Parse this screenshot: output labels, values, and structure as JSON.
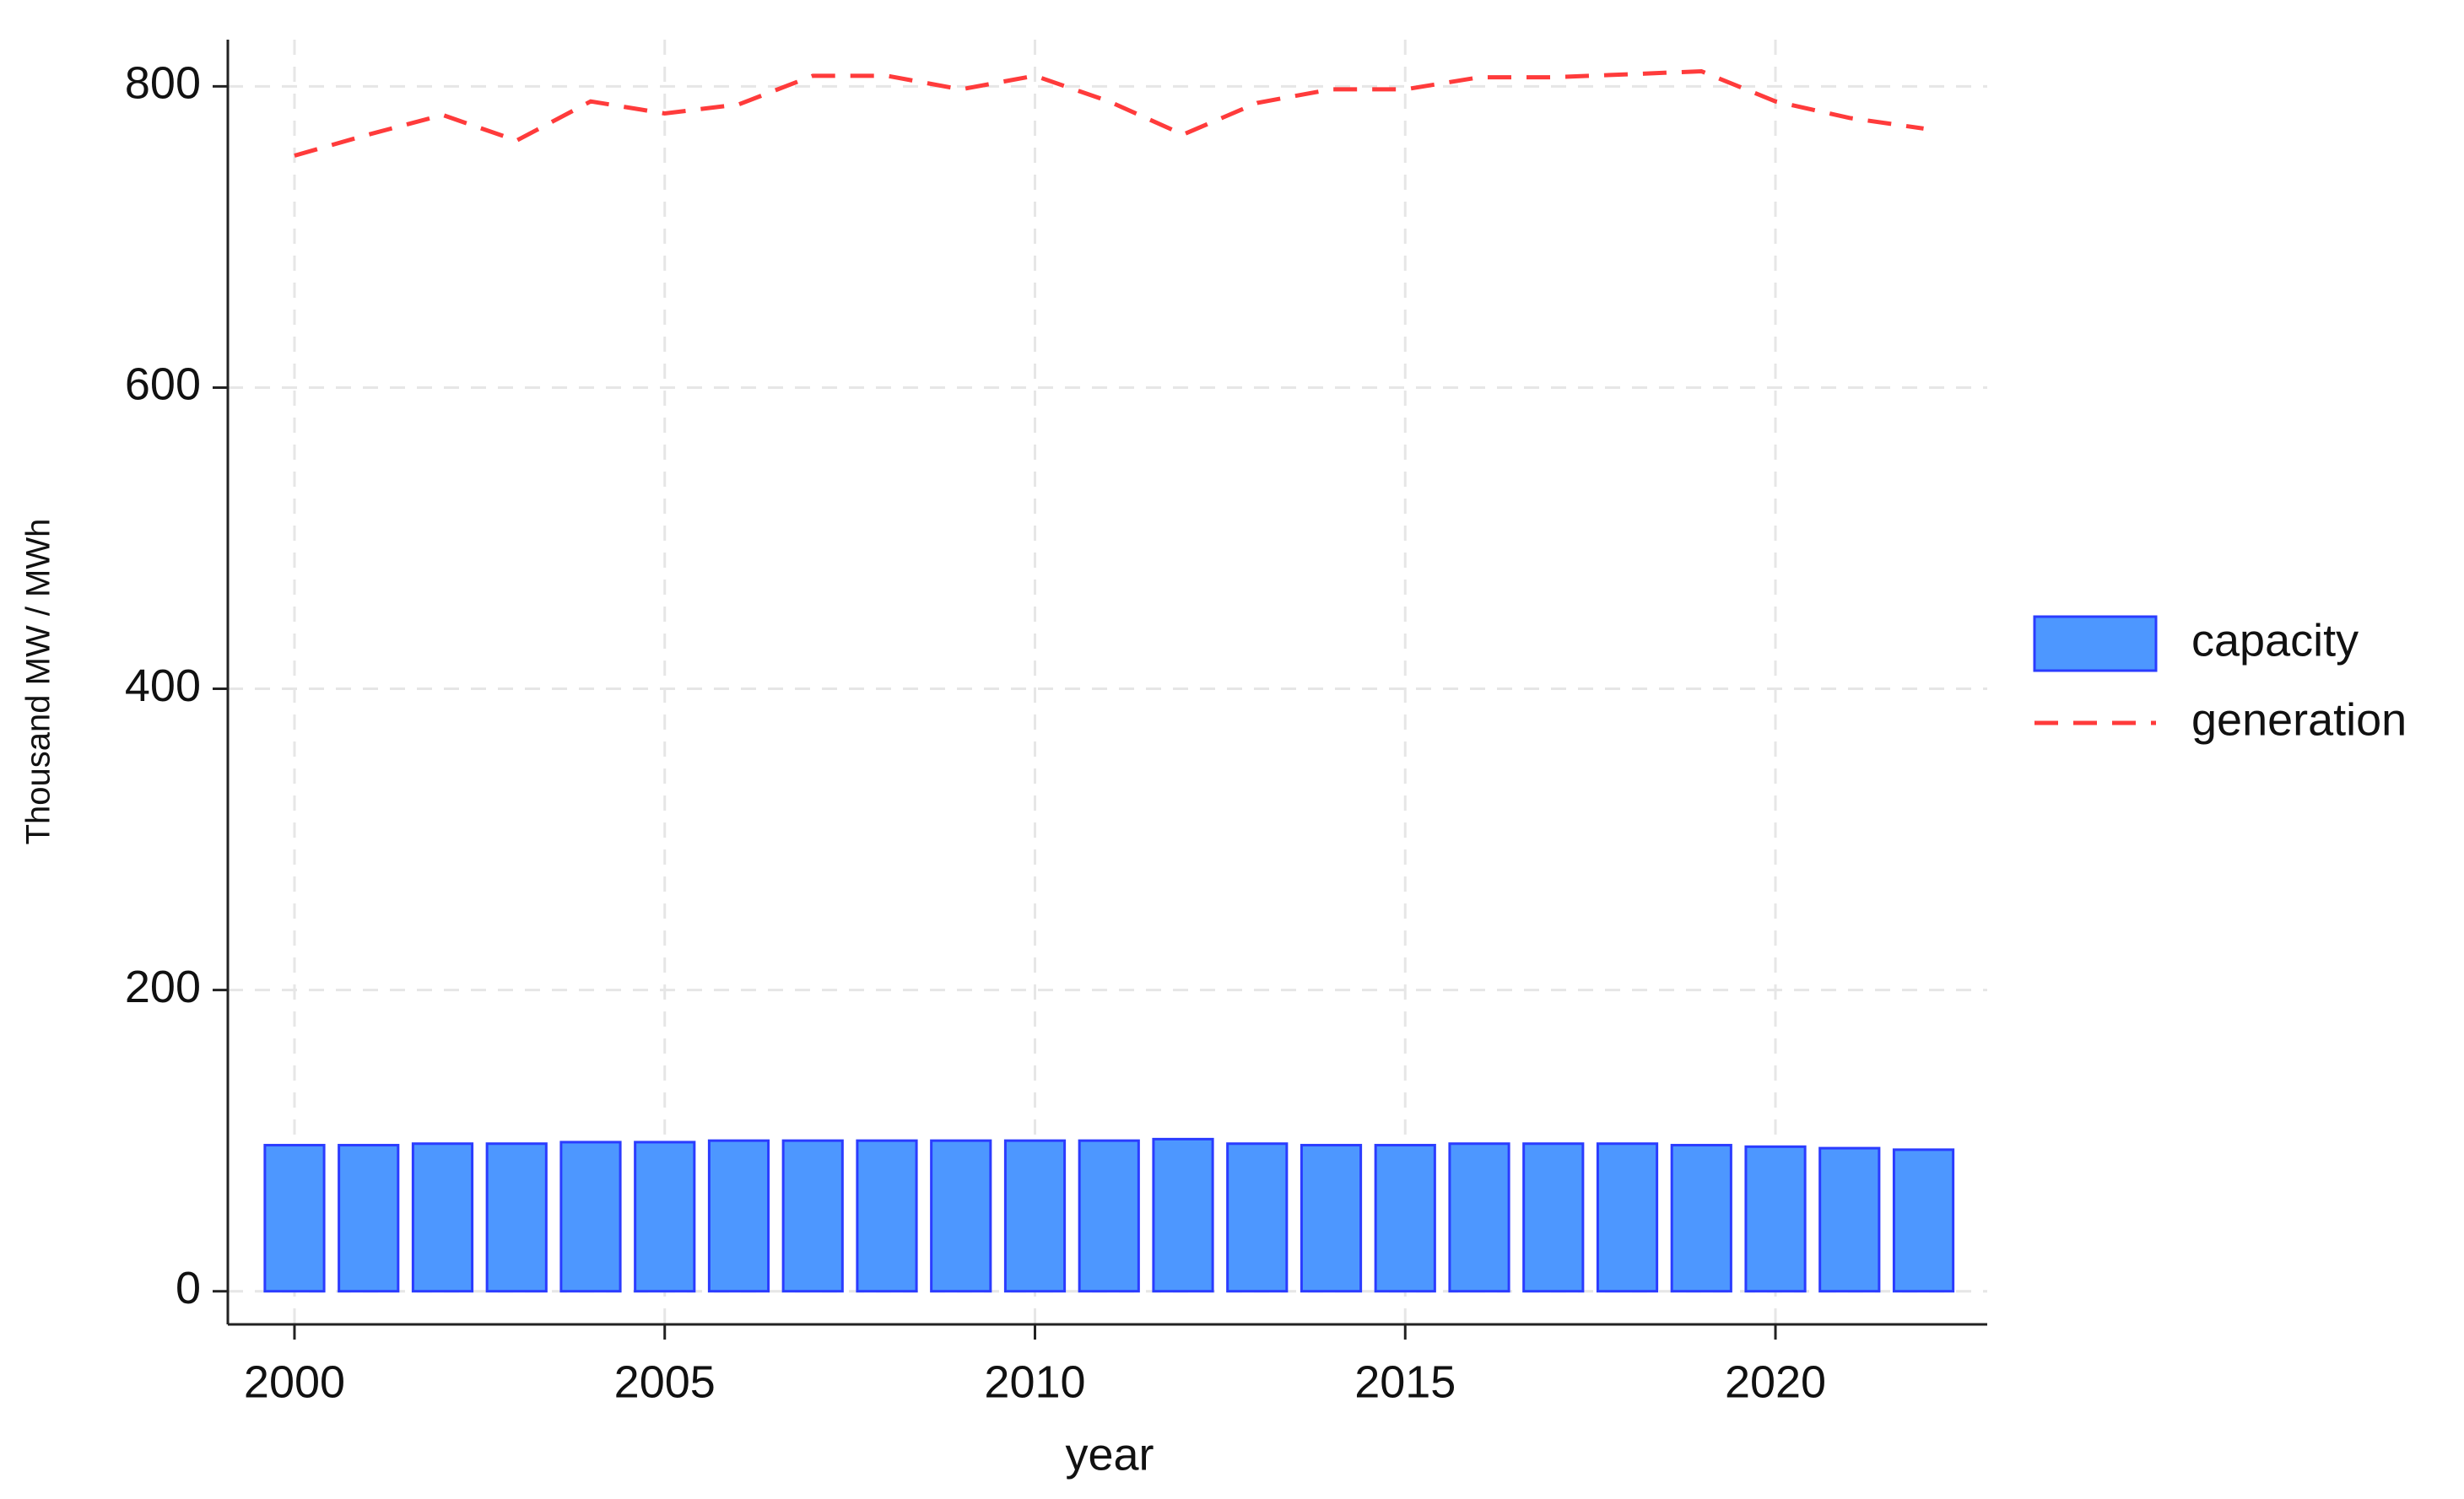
{
  "chart_data": {
    "type": "bar-line",
    "x_label": "year",
    "y_label": "Thousand MW / MWh",
    "x": [
      2000,
      2001,
      2002,
      2003,
      2004,
      2005,
      2006,
      2007,
      2008,
      2009,
      2010,
      2011,
      2012,
      2013,
      2014,
      2015,
      2016,
      2017,
      2018,
      2019,
      2020,
      2021,
      2022
    ],
    "series": [
      {
        "name": "capacity",
        "type": "bar",
        "color": "#4d97ff",
        "edge_color": "#2b3cff",
        "values": [
          97,
          97,
          98,
          98,
          99,
          99,
          100,
          100,
          100,
          100,
          100,
          100,
          101,
          98,
          97,
          97,
          98,
          98,
          98,
          97,
          96,
          95,
          94
        ]
      },
      {
        "name": "generation",
        "type": "line",
        "color": "#ff3b3b",
        "dashed": true,
        "values": [
          754,
          768,
          781,
          764,
          790,
          782,
          788,
          807,
          807,
          798,
          807,
          790,
          768,
          789,
          798,
          798,
          806,
          806,
          808,
          810,
          790,
          779,
          772
        ]
      }
    ],
    "xlim": [
      1999.1,
      2022.86
    ],
    "ylim": [
      -22,
      831
    ],
    "xticks": [
      2000,
      2005,
      2010,
      2015,
      2020
    ],
    "yticks": [
      0,
      200,
      400,
      600,
      800
    ],
    "grid": true,
    "legend": "right"
  }
}
